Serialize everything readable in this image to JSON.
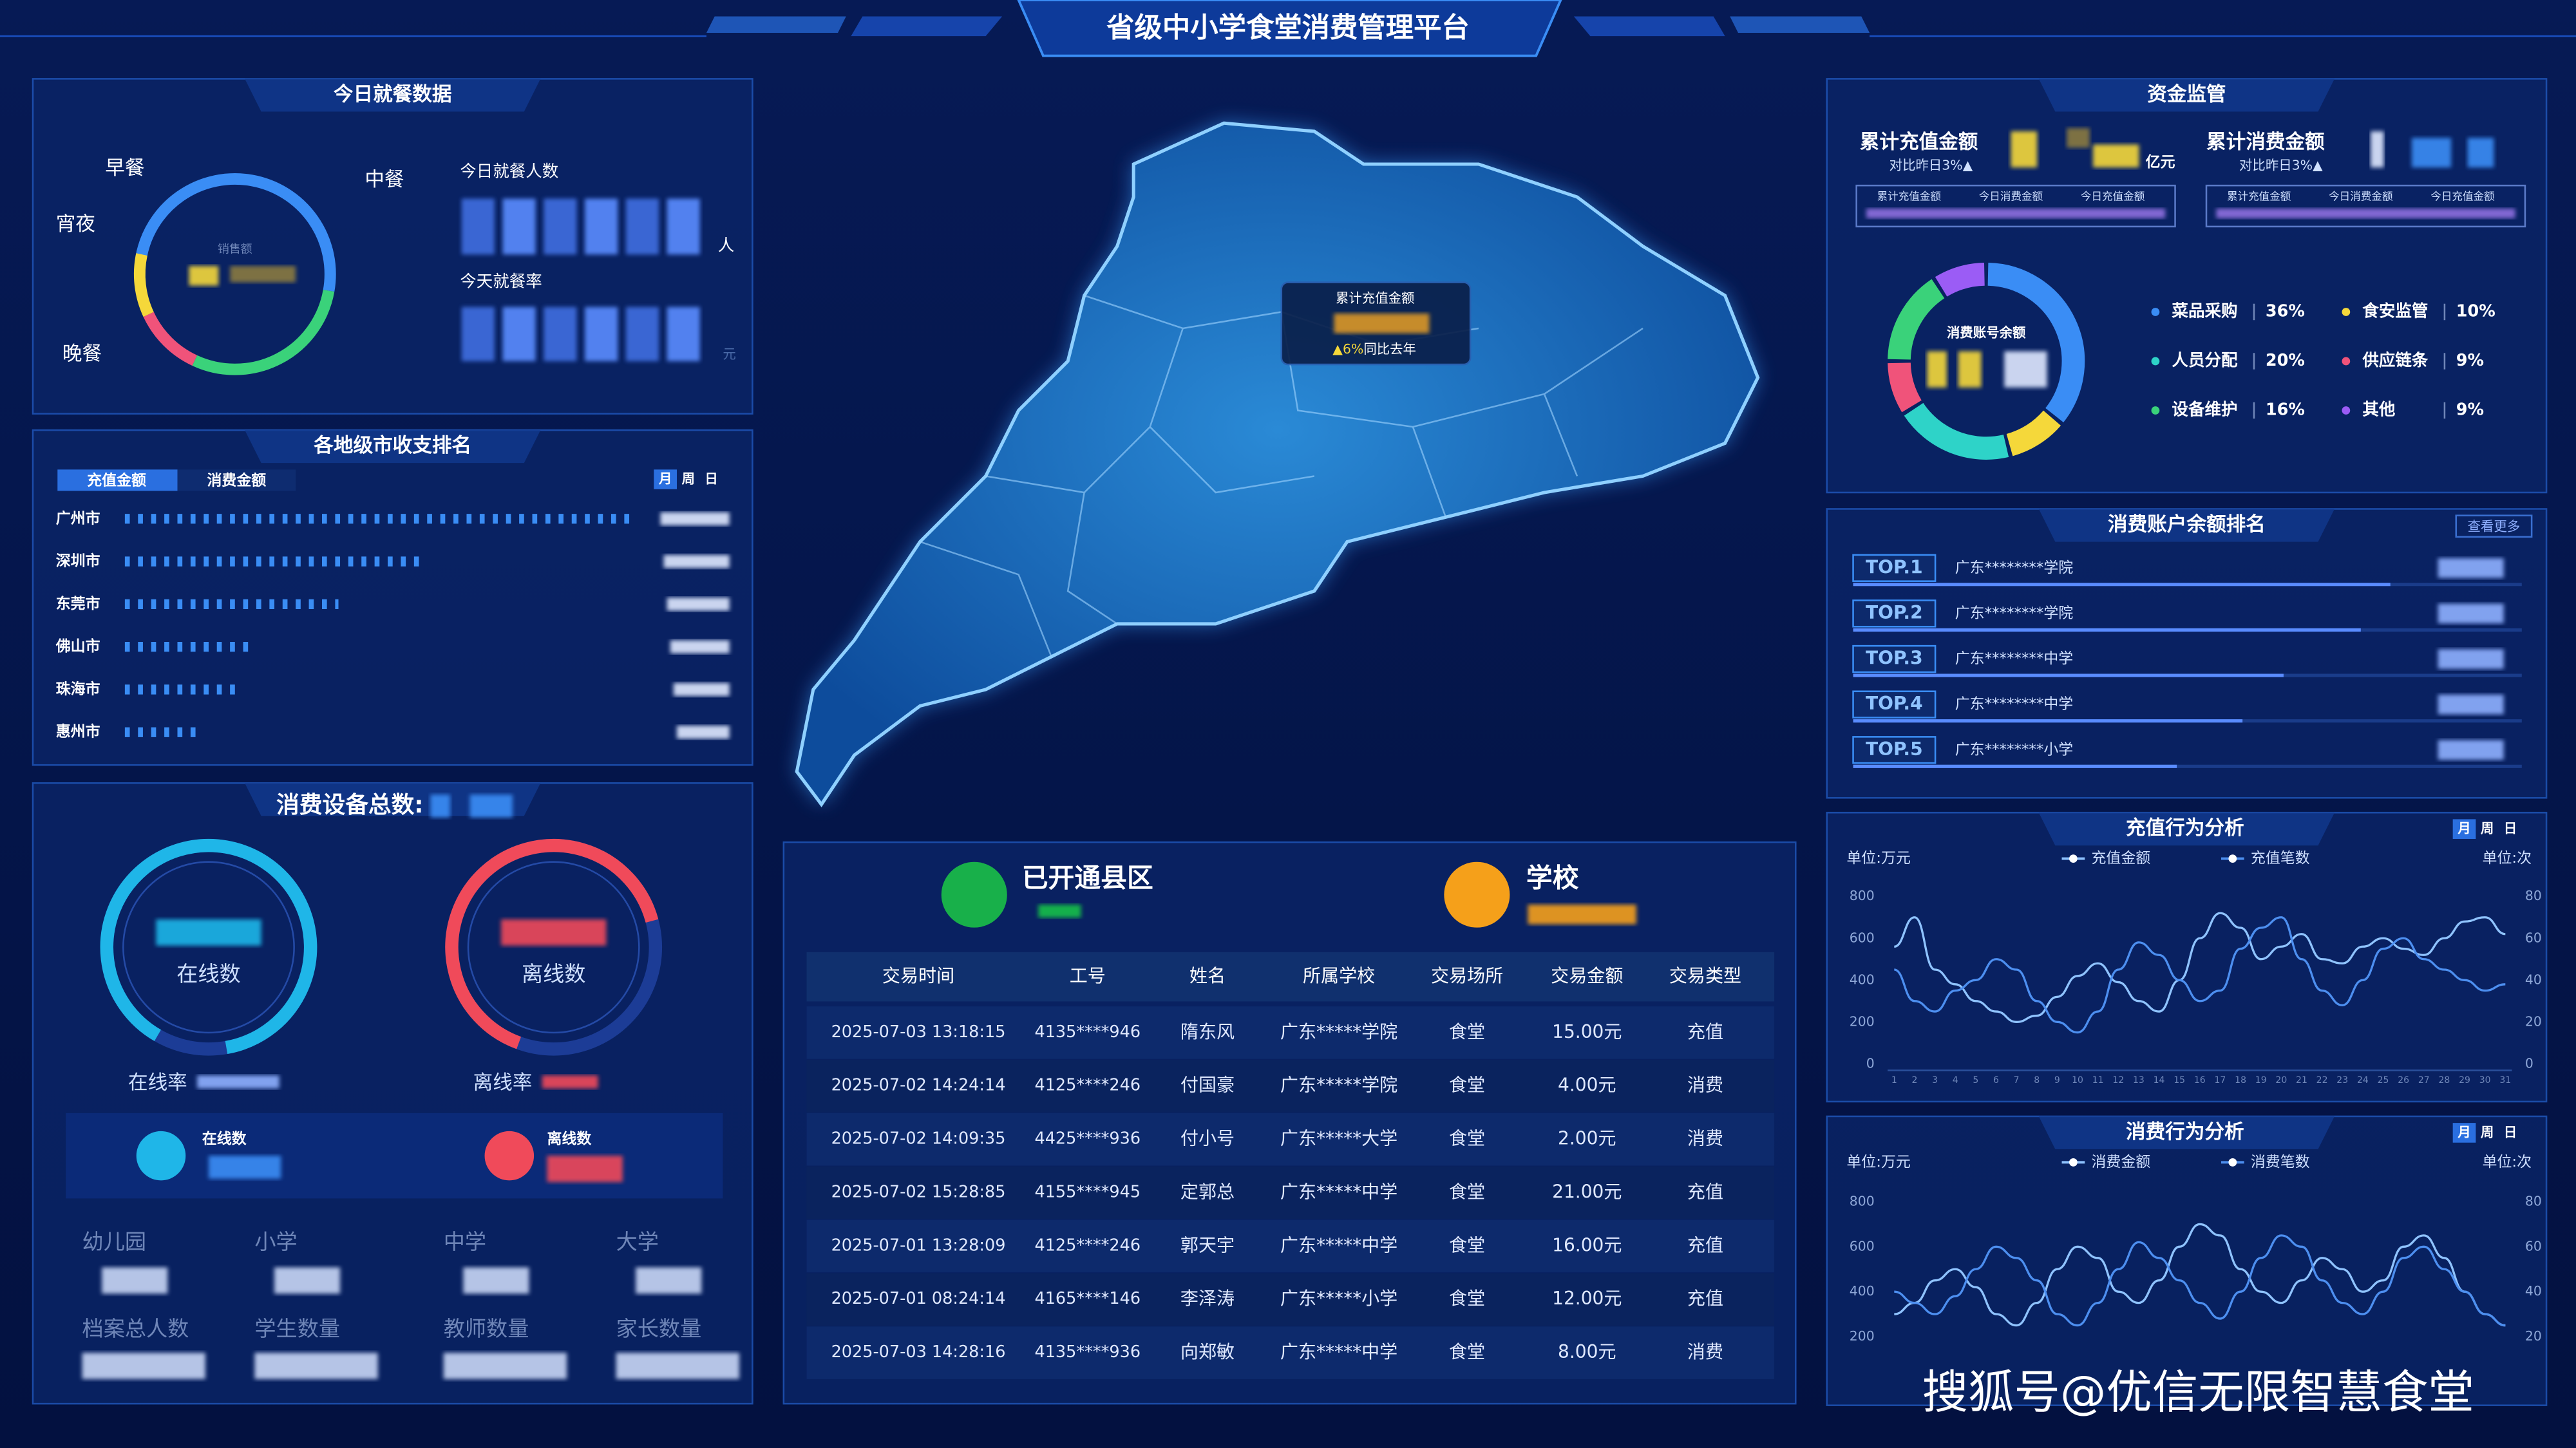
{
  "header": {
    "title": "省级中小学食堂消费管理平台"
  },
  "dining": {
    "title": "今日就餐数据",
    "meals": [
      "早餐",
      "中餐",
      "晚餐",
      "宵夜"
    ],
    "center_label": "销售额",
    "people_label": "今日就餐人数",
    "people_unit": "人",
    "rate_label": "今天就餐率",
    "rate_unit": "元"
  },
  "city_ranking": {
    "title": "各地级市收支排名",
    "tabs": [
      "充值金额",
      "消费金额"
    ],
    "periods": [
      "月",
      "周",
      "日"
    ],
    "cities": [
      "广州市",
      "深圳市",
      "东莞市",
      "佛山市",
      "珠海市",
      "惠州市"
    ]
  },
  "devices": {
    "title": "消费设备总数:",
    "online_label": "在线数",
    "offline_label": "离线数",
    "online_rate_label": "在线率",
    "offline_rate_label": "离线率",
    "online_count_label": "在线数",
    "offline_count_label": "离线数",
    "school_types": [
      "幼儿园",
      "小学",
      "中学",
      "大学"
    ],
    "people_types": [
      "档案总人数",
      "学生数量",
      "教师数量",
      "家长数量"
    ]
  },
  "map": {
    "tooltip_title": "累计充值金额",
    "tooltip_change": "▲6%",
    "tooltip_compare": "同比去年"
  },
  "summary": {
    "counties_label": "已开通县区",
    "schools_label": "学校"
  },
  "table": {
    "headers": [
      "交易时间",
      "工号",
      "姓名",
      "所属学校",
      "交易场所",
      "交易金额",
      "交易类型"
    ],
    "rows": [
      [
        "2025-07-03 13:18:15",
        "4135****946",
        "隋东风",
        "广东*****学院",
        "食堂",
        "15.00元",
        "充值"
      ],
      [
        "2025-07-02 14:24:14",
        "4125****246",
        "付国豪",
        "广东*****学院",
        "食堂",
        "4.00元",
        "消费"
      ],
      [
        "2025-07-02 14:09:35",
        "4425****936",
        "付小号",
        "广东*****大学",
        "食堂",
        "2.00元",
        "消费"
      ],
      [
        "2025-07-02 15:28:85",
        "4155****945",
        "定郭总",
        "广东*****中学",
        "食堂",
        "21.00元",
        "充值"
      ],
      [
        "2025-07-01 13:28:09",
        "4125****246",
        "郭天宇",
        "广东*****中学",
        "食堂",
        "16.00元",
        "充值"
      ],
      [
        "2025-07-01 08:24:14",
        "4165****146",
        "李泽涛",
        "广东*****小学",
        "食堂",
        "12.00元",
        "充值"
      ],
      [
        "2025-07-03 14:28:16",
        "4135****936",
        "向郑敏",
        "广东*****中学",
        "食堂",
        "8.00元",
        "消费"
      ]
    ]
  },
  "funds": {
    "title": "资金监管",
    "recharge_label": "累计充值金额",
    "recharge_change": "对比昨日3%▲",
    "recharge_unit": "亿元",
    "consume_label": "累计消费金额",
    "consume_change": "对比昨日3%▲",
    "recharge_tabs": [
      "累计充值金额",
      "今日消费金额",
      "今日充值金额"
    ],
    "consume_tabs": [
      "累计充值金额",
      "今日消费金额",
      "今日充值金额"
    ]
  },
  "balance_ranking": {
    "title": "消费账户余额排名",
    "more": "查看更多",
    "items": [
      {
        "rank": "TOP.1",
        "name": "广东********学院"
      },
      {
        "rank": "TOP.2",
        "name": "广东********学院"
      },
      {
        "rank": "TOP.3",
        "name": "广东********中学"
      },
      {
        "rank": "TOP.4",
        "name": "广东********中学"
      },
      {
        "rank": "TOP.5",
        "name": "广东********小学"
      }
    ]
  },
  "chart_data": [
    {
      "type": "line",
      "title": "充值行为分析",
      "periods": [
        "月",
        "周",
        "日"
      ],
      "y_unit": "单位:万元",
      "y2_unit": "单位:次",
      "x": [
        1,
        2,
        3,
        4,
        5,
        6,
        7,
        8,
        9,
        10,
        11,
        12,
        13,
        14,
        15,
        16,
        17,
        18,
        19,
        20,
        21,
        22,
        23,
        24,
        25,
        26,
        27,
        28,
        29,
        30,
        31
      ],
      "xlim": [
        1,
        31
      ],
      "ylim": [
        0,
        800
      ],
      "yticks": [
        0,
        200,
        400,
        600,
        800
      ],
      "y2lim": [
        0,
        80
      ],
      "y2ticks": [
        0,
        20,
        40,
        60,
        80
      ],
      "series": [
        {
          "name": "充值金额",
          "color": "#8fc3ff",
          "values": [
            560,
            700,
            450,
            380,
            300,
            250,
            200,
            230,
            320,
            420,
            480,
            390,
            300,
            250,
            400,
            600,
            720,
            650,
            500,
            560,
            620,
            500,
            480,
            560,
            600,
            550,
            520,
            600,
            680,
            700,
            620
          ]
        },
        {
          "name": "充值笔数",
          "color": "#4d8ff0",
          "axis": "y2",
          "values": [
            45,
            30,
            25,
            35,
            40,
            50,
            45,
            30,
            20,
            15,
            25,
            45,
            58,
            52,
            40,
            30,
            35,
            55,
            65,
            70,
            50,
            35,
            28,
            40,
            55,
            60,
            50,
            45,
            40,
            35,
            38
          ]
        }
      ]
    },
    {
      "type": "line",
      "title": "消费行为分析",
      "periods": [
        "月",
        "周",
        "日"
      ],
      "y_unit": "单位:万元",
      "y2_unit": "单位:次",
      "ylim": [
        150,
        800
      ],
      "yticks": [
        200,
        400,
        600,
        800
      ],
      "y2lim": [
        15,
        80
      ],
      "y2ticks": [
        20,
        40,
        60,
        80
      ],
      "series": [
        {
          "name": "消费金额",
          "color": "#8fc3ff",
          "values": [
            300,
            350,
            450,
            500,
            420,
            300,
            250,
            350,
            500,
            600,
            550,
            400,
            350,
            450,
            600,
            700,
            650,
            500,
            400,
            350,
            450,
            550,
            500,
            400,
            450,
            600,
            650,
            550,
            400,
            300,
            250
          ]
        },
        {
          "name": "消费笔数",
          "color": "#4d8ff0",
          "axis": "y2",
          "values": [
            40,
            35,
            30,
            38,
            50,
            60,
            55,
            45,
            30,
            25,
            35,
            50,
            62,
            55,
            45,
            35,
            28,
            40,
            55,
            65,
            60,
            45,
            35,
            30,
            40,
            55,
            60,
            50,
            40,
            30,
            25
          ]
        }
      ]
    },
    {
      "type": "pie",
      "title": "消费账号余额",
      "categories": [
        "菜品采购",
        "食安监管",
        "人员分配",
        "供应链条",
        "设备维护",
        "其他"
      ],
      "values": [
        36,
        10,
        20,
        9,
        16,
        9
      ],
      "value_labels": [
        "36%",
        "10%",
        "20%",
        "9%",
        "16%",
        "9%"
      ],
      "colors": [
        "#3a8df5",
        "#f5d83a",
        "#2ed3c8",
        "#f0537a",
        "#3ad27a",
        "#9b5cf5"
      ]
    }
  ],
  "watermark": "搜狐号@优信无限智慧食堂"
}
